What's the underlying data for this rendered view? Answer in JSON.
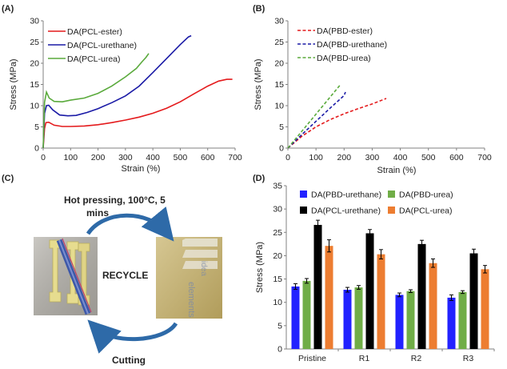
{
  "panels": {
    "a": "(A)",
    "b": "(B)",
    "c": "(C)",
    "d": "(D)"
  },
  "colors": {
    "red": "#e41a1c",
    "blue": "#1a1aa6",
    "green": "#5aaa3c",
    "black": "#000000",
    "orange": "#ed7d31",
    "bar_blue": "#2222ff",
    "bar_green": "#70ad47",
    "arrow": "#2e6aa8"
  },
  "chart_data": [
    {
      "id": "A",
      "type": "line",
      "xlabel": "Strain (%)",
      "ylabel": "Stress (MPa)",
      "xlim": [
        0,
        700
      ],
      "ylim": [
        0,
        30
      ],
      "xticks": [
        0,
        100,
        200,
        300,
        400,
        500,
        600,
        700
      ],
      "yticks": [
        0,
        5,
        10,
        15,
        20,
        25,
        30
      ],
      "legend_position": "top-left",
      "series": [
        {
          "name": "DA(PCL-ester)",
          "color": "#e41a1c",
          "points": [
            [
              0,
              0
            ],
            [
              5,
              4.6
            ],
            [
              10,
              6.0
            ],
            [
              20,
              6.1
            ],
            [
              40,
              5.4
            ],
            [
              70,
              5.1
            ],
            [
              100,
              5.1
            ],
            [
              150,
              5.2
            ],
            [
              200,
              5.5
            ],
            [
              250,
              6.0
            ],
            [
              300,
              6.6
            ],
            [
              350,
              7.3
            ],
            [
              400,
              8.2
            ],
            [
              450,
              9.4
            ],
            [
              500,
              10.9
            ],
            [
              550,
              12.8
            ],
            [
              600,
              14.6
            ],
            [
              640,
              15.8
            ],
            [
              670,
              16.2
            ],
            [
              690,
              16.2
            ]
          ]
        },
        {
          "name": "DA(PCL-urethane)",
          "color": "#1a1aa6",
          "points": [
            [
              0,
              0
            ],
            [
              5,
              8.2
            ],
            [
              12,
              10.0
            ],
            [
              20,
              10.1
            ],
            [
              35,
              9.0
            ],
            [
              60,
              7.8
            ],
            [
              90,
              7.6
            ],
            [
              120,
              7.7
            ],
            [
              160,
              8.4
            ],
            [
              200,
              9.3
            ],
            [
              250,
              10.7
            ],
            [
              300,
              12.3
            ],
            [
              350,
              14.6
            ],
            [
              400,
              17.8
            ],
            [
              450,
              21.1
            ],
            [
              500,
              24.4
            ],
            [
              530,
              26.2
            ],
            [
              540,
              26.5
            ]
          ]
        },
        {
          "name": "DA(PCL-urea)",
          "color": "#5aaa3c",
          "points": [
            [
              0,
              0
            ],
            [
              5,
              10.8
            ],
            [
              12,
              13.2
            ],
            [
              22,
              11.8
            ],
            [
              40,
              11.0
            ],
            [
              70,
              10.9
            ],
            [
              100,
              11.3
            ],
            [
              150,
              11.8
            ],
            [
              200,
              12.9
            ],
            [
              250,
              14.6
            ],
            [
              300,
              16.8
            ],
            [
              340,
              18.8
            ],
            [
              360,
              20.3
            ],
            [
              375,
              21.4
            ],
            [
              385,
              22.3
            ]
          ]
        }
      ]
    },
    {
      "id": "B",
      "type": "line",
      "xlabel": "Strain (%)",
      "ylabel": "Stress (MPa)",
      "xlim": [
        0,
        700
      ],
      "ylim": [
        0,
        30
      ],
      "xticks": [
        0,
        100,
        200,
        300,
        400,
        500,
        600,
        700
      ],
      "yticks": [
        0,
        5,
        10,
        15,
        20,
        25,
        30
      ],
      "legend_position": "top-right",
      "series": [
        {
          "name": "DA(PBD-ester)",
          "color": "#e41a1c",
          "dash": true,
          "points": [
            [
              0,
              0
            ],
            [
              50,
              2.8
            ],
            [
              100,
              5.0
            ],
            [
              150,
              6.7
            ],
            [
              200,
              8.1
            ],
            [
              250,
              9.3
            ],
            [
              300,
              10.4
            ],
            [
              350,
              11.7
            ]
          ]
        },
        {
          "name": "DA(PBD-urethane)",
          "color": "#1a1aa6",
          "dash": true,
          "points": [
            [
              0,
              0
            ],
            [
              50,
              3.2
            ],
            [
              100,
              6.3
            ],
            [
              150,
              9.4
            ],
            [
              200,
              12.4
            ],
            [
              205,
              13.2
            ]
          ]
        },
        {
          "name": "DA(PBD-urea)",
          "color": "#5aaa3c",
          "dash": true,
          "points": [
            [
              0,
              0
            ],
            [
              50,
              4.0
            ],
            [
              100,
              8.0
            ],
            [
              150,
              12.0
            ],
            [
              185,
              14.8
            ]
          ]
        }
      ]
    },
    {
      "id": "D",
      "type": "bar",
      "ylabel": "Stress (MPa)",
      "ylim": [
        0,
        35
      ],
      "yticks": [
        0,
        5,
        10,
        15,
        20,
        25,
        30,
        35
      ],
      "categories": [
        "Pristine",
        "R1",
        "R2",
        "R3"
      ],
      "legend_position": "top",
      "series": [
        {
          "name": "DA(PBD-urethane)",
          "color": "#2222ff",
          "values": [
            13.4,
            12.7,
            11.6,
            11.0
          ],
          "errors": [
            0.6,
            0.5,
            0.4,
            0.6
          ]
        },
        {
          "name": "DA(PBD-urea)",
          "color": "#70ad47",
          "values": [
            14.6,
            13.2,
            12.4,
            12.2
          ],
          "errors": [
            0.5,
            0.4,
            0.3,
            0.3
          ]
        },
        {
          "name": "DA(PCL-urethane)",
          "color": "#000000",
          "values": [
            26.6,
            24.8,
            22.5,
            20.5
          ],
          "errors": [
            1.0,
            0.8,
            0.8,
            0.9
          ]
        },
        {
          "name": "DA(PCL-urea)",
          "color": "#ed7d31",
          "values": [
            22.1,
            20.3,
            18.4,
            17.1
          ],
          "errors": [
            1.3,
            1.0,
            0.9,
            0.8
          ]
        }
      ]
    }
  ],
  "recycle": {
    "top_label": "Hot pressing, 100°C, 5 mins",
    "top_line1": "Hot pressing, 100°C, 5",
    "top_line2": "mins",
    "center_label": "RECYCLE",
    "bottom_label": "Cutting"
  }
}
